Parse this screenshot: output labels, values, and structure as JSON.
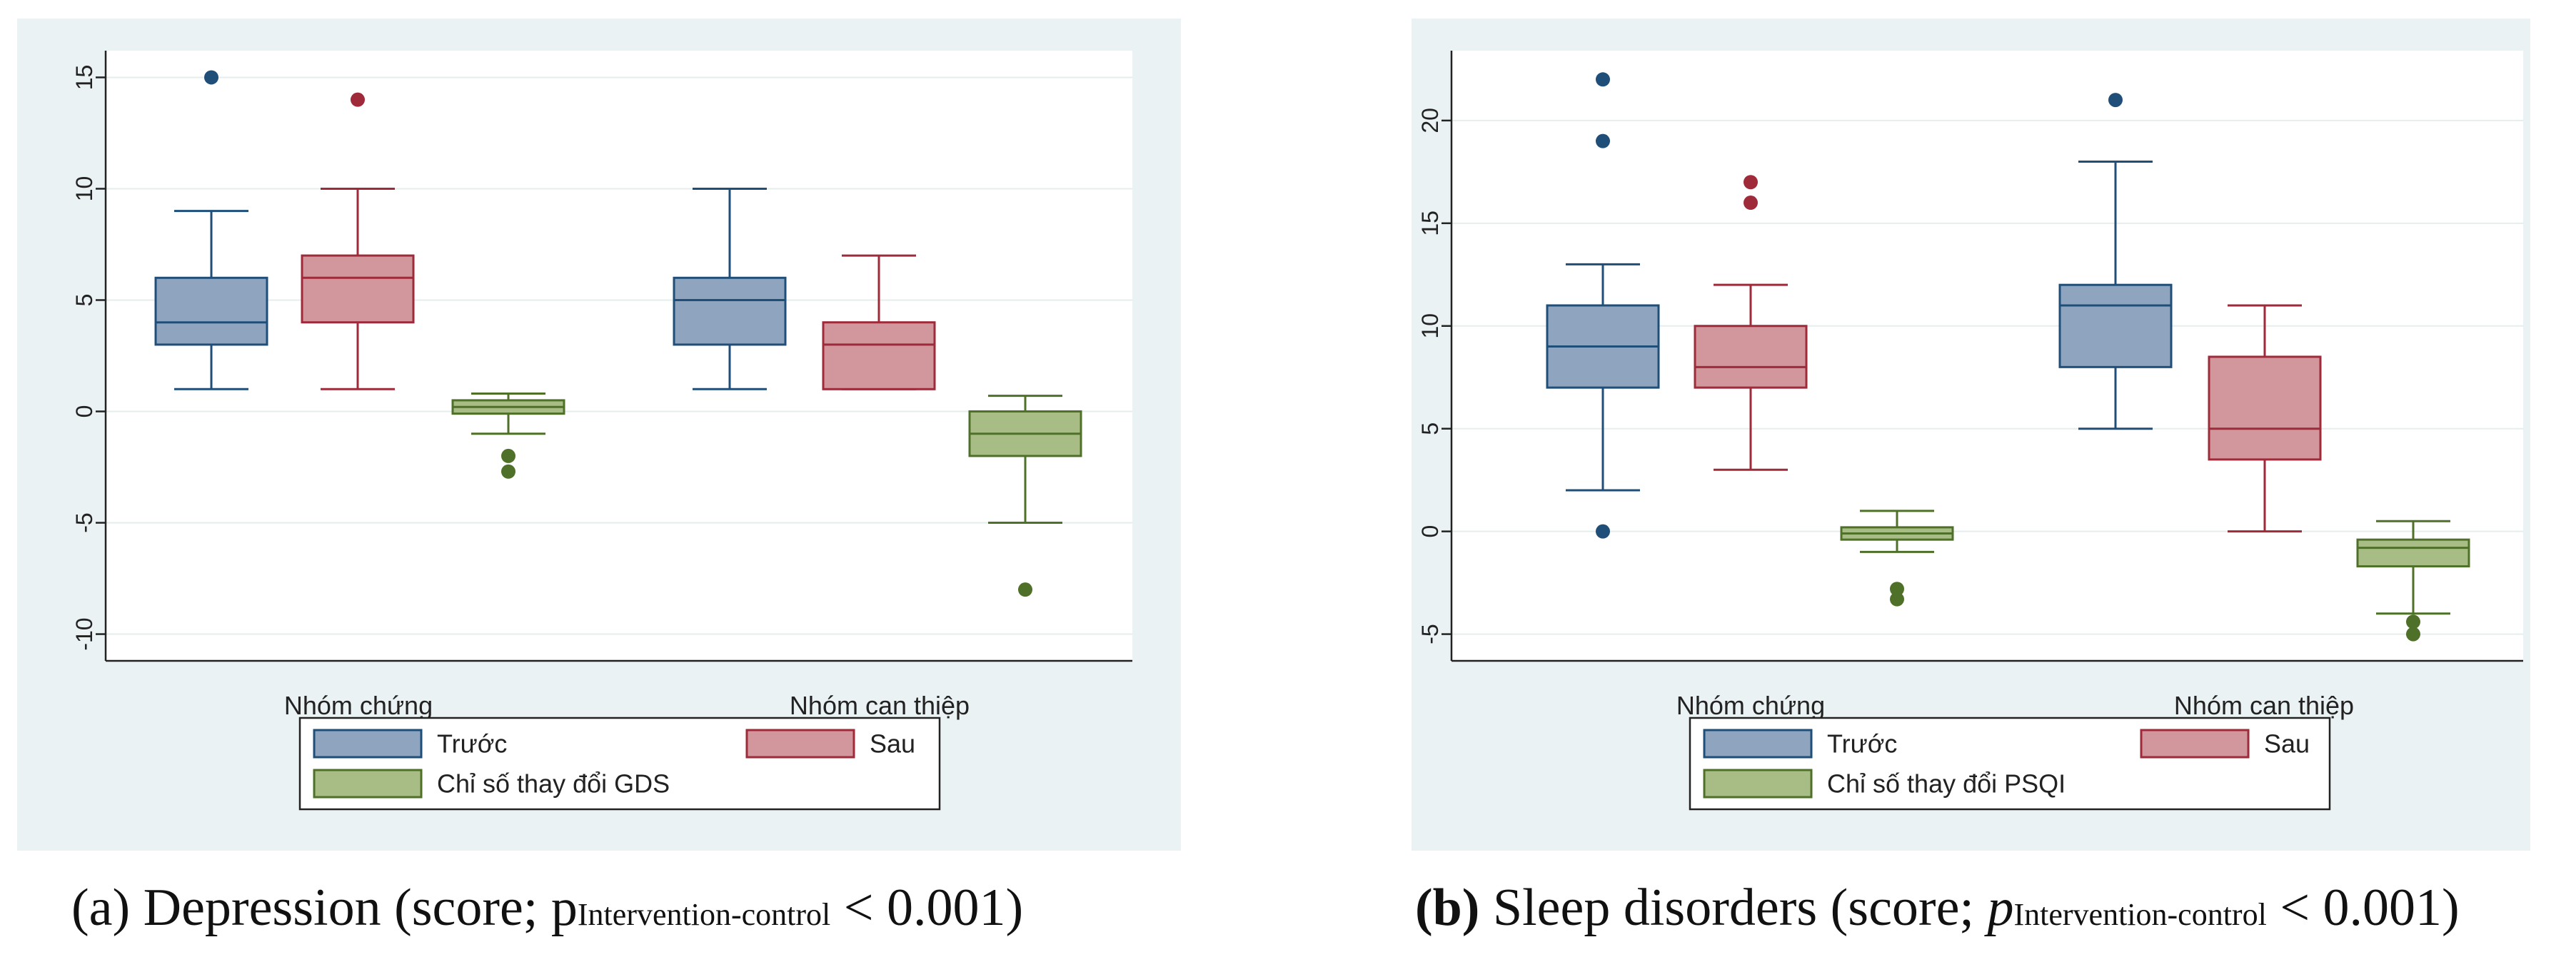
{
  "chart_data": [
    {
      "type": "box",
      "panel": "a",
      "caption_label": "(a)",
      "caption_text": "Depression (score; ",
      "caption_p": "p",
      "caption_sub": "Intervention-control",
      "caption_tail": " < 0.001)",
      "ylim": [
        -11.2,
        16.2
      ],
      "yticks": [
        -10,
        -5,
        0,
        5,
        10,
        15
      ],
      "ytick_labels": [
        "-10",
        "-5",
        "0",
        "5",
        "10",
        "15"
      ],
      "grid": true,
      "categories": [
        "Nhóm chứng",
        "Nhóm can thiệp"
      ],
      "series": [
        {
          "name": "Trước",
          "color": "#8fa5bf",
          "line": "#1f4e79",
          "boxes": [
            {
              "whisker_low": 1,
              "q1": 3,
              "median": 4,
              "q3": 6,
              "whisker_high": 9,
              "outliers": [
                15
              ]
            },
            {
              "whisker_low": 1,
              "q1": 3,
              "median": 5,
              "q3": 6,
              "whisker_high": 10,
              "outliers": []
            }
          ]
        },
        {
          "name": "Sau",
          "color": "#d2969d",
          "line": "#9e2a3a",
          "boxes": [
            {
              "whisker_low": 1,
              "q1": 4,
              "median": 6,
              "q3": 7,
              "whisker_high": 10,
              "outliers": [
                14
              ]
            },
            {
              "whisker_low": 1,
              "q1": 1,
              "median": 3,
              "q3": 4,
              "whisker_high": 7,
              "outliers": []
            }
          ]
        },
        {
          "name": "Chỉ số thay đổi GDS",
          "color": "#a8bd86",
          "line": "#4f7028",
          "boxes": [
            {
              "whisker_low": -1,
              "q1": -0.1,
              "median": 0.2,
              "q3": 0.5,
              "whisker_high": 0.8,
              "outliers": [
                -2,
                -2.7
              ]
            },
            {
              "whisker_low": -5,
              "q1": -2,
              "median": -1,
              "q3": 0,
              "whisker_high": 0.7,
              "outliers": [
                -8
              ]
            }
          ]
        }
      ]
    },
    {
      "type": "box",
      "panel": "b",
      "caption_label": "(b)",
      "caption_text": " Sleep disorders (score; ",
      "caption_p": "p",
      "caption_sub": "Intervention-control",
      "caption_tail": " < 0.001)",
      "ylim": [
        -6.3,
        23.4
      ],
      "yticks": [
        -5,
        0,
        5,
        10,
        15,
        20
      ],
      "ytick_labels": [
        "-5",
        "0",
        "5",
        "10",
        "15",
        "20"
      ],
      "grid": true,
      "categories": [
        "Nhóm chứng",
        "Nhóm can thiệp"
      ],
      "series": [
        {
          "name": "Trước",
          "color": "#8fa5bf",
          "line": "#1f4e79",
          "boxes": [
            {
              "whisker_low": 2,
              "q1": 7,
              "median": 9,
              "q3": 11,
              "whisker_high": 13,
              "outliers": [
                22,
                19,
                0
              ]
            },
            {
              "whisker_low": 5,
              "q1": 8,
              "median": 11,
              "q3": 12,
              "whisker_high": 18,
              "outliers": [
                21
              ]
            }
          ]
        },
        {
          "name": "Sau",
          "color": "#d2969d",
          "line": "#9e2a3a",
          "boxes": [
            {
              "whisker_low": 3,
              "q1": 7,
              "median": 8,
              "q3": 10,
              "whisker_high": 12,
              "outliers": [
                17,
                16
              ]
            },
            {
              "whisker_low": 0,
              "q1": 3.5,
              "median": 5,
              "q3": 8.5,
              "whisker_high": 11,
              "outliers": []
            }
          ]
        },
        {
          "name": "Chỉ số thay đổi PSQI",
          "color": "#a8bd86",
          "line": "#4f7028",
          "boxes": [
            {
              "whisker_low": -1,
              "q1": -0.4,
              "median": -0.1,
              "q3": 0.2,
              "whisker_high": 1,
              "outliers": [
                -2.8,
                -3.3
              ]
            },
            {
              "whisker_low": -4,
              "q1": -1.7,
              "median": -0.8,
              "q3": -0.4,
              "whisker_high": 0.5,
              "outliers": [
                -4.4,
                -5
              ]
            }
          ]
        }
      ]
    }
  ]
}
